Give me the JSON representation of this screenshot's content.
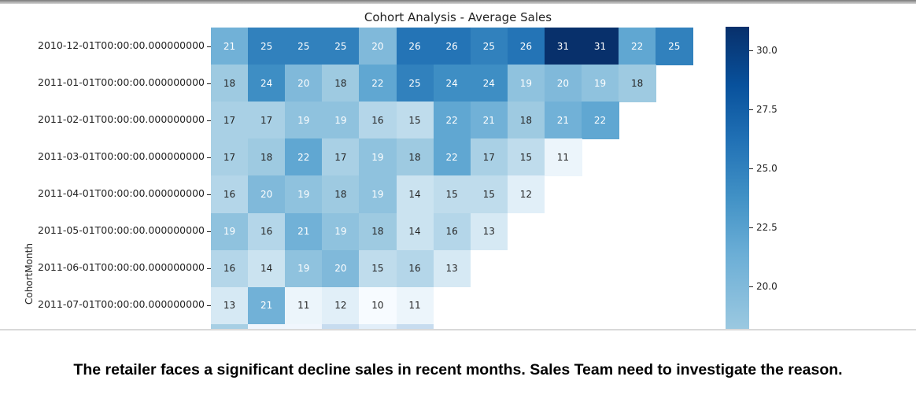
{
  "caption": "The retailer faces a significant decline sales in recent months. Sales Team need to investigate the reason.",
  "chart_data": {
    "type": "heatmap",
    "title": "Cohort Analysis - Average Sales",
    "ylabel": "CohortMonth",
    "xlabel": "",
    "colormap": "Blues",
    "rows": [
      "2010-12-01T00:00:00.000000000",
      "2011-01-01T00:00:00.000000000",
      "2011-02-01T00:00:00.000000000",
      "2011-03-01T00:00:00.000000000",
      "2011-04-01T00:00:00.000000000",
      "2011-05-01T00:00:00.000000000",
      "2011-06-01T00:00:00.000000000",
      "2011-07-01T00:00:00.000000000"
    ],
    "values": [
      [
        21,
        25,
        25,
        25,
        20,
        26,
        26,
        25,
        26,
        31,
        31,
        22,
        25
      ],
      [
        18,
        24,
        20,
        18,
        22,
        25,
        24,
        24,
        19,
        20,
        19,
        18
      ],
      [
        17,
        17,
        19,
        19,
        16,
        15,
        22,
        21,
        18,
        21,
        22
      ],
      [
        17,
        18,
        22,
        17,
        19,
        18,
        22,
        17,
        15,
        11
      ],
      [
        16,
        20,
        19,
        18,
        19,
        14,
        15,
        15,
        12
      ],
      [
        19,
        16,
        21,
        19,
        18,
        14,
        16,
        13
      ],
      [
        16,
        14,
        19,
        20,
        15,
        16,
        13
      ],
      [
        13,
        21,
        11,
        12,
        10,
        11
      ]
    ],
    "partial_row_colors": [
      "#a7cfe4",
      "#f0f6fd",
      "#f0f6fd",
      "#c7dcef",
      "#e2eef9",
      "#c7dcef"
    ],
    "colorbar": {
      "ticks": [
        30.0,
        27.5,
        25.0,
        22.5,
        20.0
      ],
      "tick_labels": [
        "30.0",
        "27.5",
        "25.0",
        "22.5",
        "20.0"
      ],
      "range": [
        18.0,
        31.0
      ]
    }
  }
}
